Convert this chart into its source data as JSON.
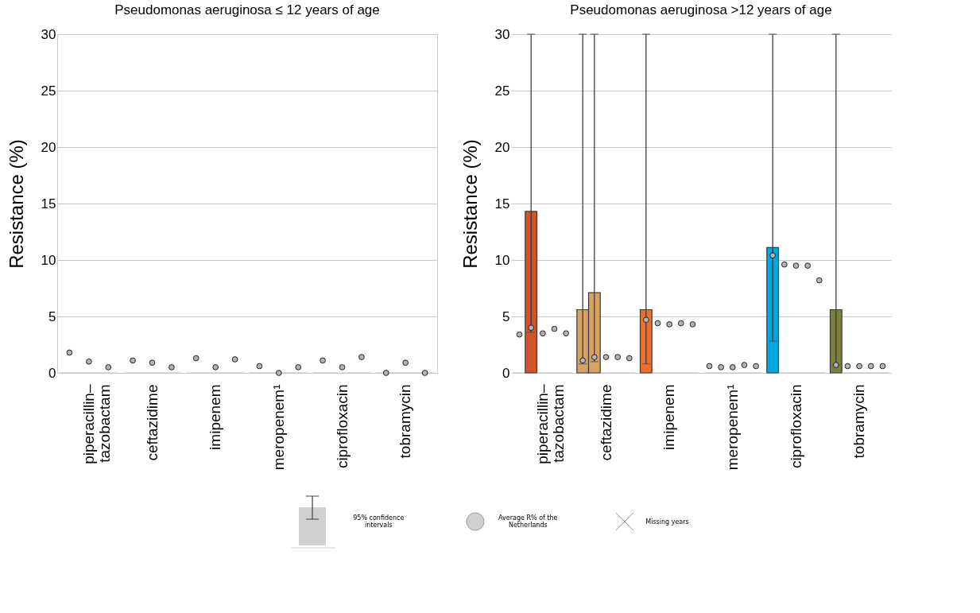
{
  "chart_data": [
    {
      "type": "bar",
      "title": "Pseudomonas aeruginosa ≤ 12 years of age",
      "ylabel": "Resistance (%)",
      "categories": [
        "piperacillin–tazobactam",
        "ceftazidime",
        "imipenem",
        "meropenem¹",
        "ciprofloxacin",
        "tobramycin"
      ],
      "ylim": [
        0,
        30
      ],
      "yticks": [
        0,
        5,
        10,
        15,
        20,
        25,
        30
      ],
      "grid": "y",
      "marker": "circle",
      "series": [
        {
          "colors": [
            "#bfbfbf",
            "#bfbfbf",
            "#bfbfbf",
            "#bfbfbf",
            "#bfbfbf",
            "#bfbfbf"
          ],
          "values": [
            0,
            0,
            0,
            0,
            0,
            0
          ]
        },
        {
          "colors": [
            "#bfbfbf",
            "#bfbfbf",
            "#bfbfbf",
            "#bfbfbf",
            "#bfbfbf",
            "#bfbfbf"
          ],
          "values": [
            0,
            0,
            0,
            0,
            0,
            0
          ]
        },
        {
          "colors": [
            "#bfbfbf",
            "#bfbfbf",
            "#bfbfbf",
            "#bfbfbf",
            "#bfbfbf",
            "#bfbfbf"
          ],
          "values": [
            0,
            0,
            0,
            0,
            0,
            0
          ]
        },
        {
          "type": "scatter",
          "color": "#b3b3b3",
          "x": [
            "piperacillin–tazobactam",
            "ceftazidime",
            "imipenem",
            "meropenem¹",
            "ciprofloxacin",
            "tobramycin"
          ],
          "values": [
            1.8,
            1.1,
            1.3,
            0.6,
            1.1,
            0.0
          ]
        },
        {
          "type": "scatter",
          "color": "#b3b3b3",
          "x": [
            "piperacillin–tazobactam",
            "ceftazidime",
            "imipenem",
            "meropenem¹",
            "ciprofloxacin",
            "tobramycin"
          ],
          "values": [
            1.0,
            0.9,
            0.5,
            0.0,
            0.5,
            0.9
          ]
        },
        {
          "type": "scatter",
          "color": "#b3b3b3",
          "x": [
            "piperacillin–tazobactam",
            "ceftazidime",
            "imipenem",
            "meropenem¹",
            "ciprofloxacin",
            "tobramycin"
          ],
          "values": [
            0.5,
            0.5,
            1.2,
            0.5,
            1.4,
            0.0
          ]
        }
      ]
    },
    {
      "type": "bar",
      "title": "Pseudomonas aeruginosa >12 years of age",
      "ylabel": "Resistance (%)",
      "categories": [
        "piperacillin–tazobactam",
        "ceftazidime",
        "imipenem",
        "meropenem¹",
        "ciprofloxacin",
        "tobramycin"
      ],
      "ylim": [
        0,
        30
      ],
      "yticks": [
        0,
        5,
        10,
        15,
        20,
        25,
        30
      ],
      "grid": "y",
      "marker": "circle",
      "annotations": [
        "95% confidence intervals",
        "Average R% of the Netherlands",
        "Missing years"
      ],
      "series": [
        {
          "colors": [
            "#bfbfbf",
            "#d6a265",
            "#ec6f2d",
            "#bfbfbf",
            "#00a7e1",
            "#7d7f3d"
          ],
          "values": [
            0,
            5.6,
            5.6,
            0,
            11.1,
            5.6
          ],
          "errors": [
            null,
            [
              0.8,
              30
            ],
            [
              0.8,
              30
            ],
            null,
            [
              2.8,
              30
            ],
            [
              0.7,
              30
            ]
          ]
        },
        {
          "colors": [
            "#d2532c",
            "#d6a265",
            "#bfbfbf",
            "#bfbfbf",
            "#bfbfbf",
            "#bfbfbf"
          ],
          "values": [
            14.3,
            7.1,
            0,
            0,
            0,
            0
          ],
          "errors": [
            [
              3.6,
              30
            ],
            [
              1.0,
              30
            ],
            null,
            null,
            null,
            null
          ]
        },
        {
          "colors": [
            "#bfbfbf",
            "#bfbfbf",
            "#bfbfbf",
            "#bfbfbf",
            "#bfbfbf",
            "#bfbfbf"
          ],
          "values": [
            0,
            0,
            0,
            0,
            0,
            0
          ]
        },
        {
          "colors": [
            "#bfbfbf",
            "#bfbfbf",
            "#bfbfbf",
            "#bfbfbf",
            "#bfbfbf",
            "#bfbfbf"
          ],
          "values": [
            0,
            0,
            0,
            0,
            0,
            0
          ]
        },
        {
          "colors": [
            "#bfbfbf",
            "#bfbfbf",
            "#bfbfbf",
            "#bfbfbf",
            "#bfbfbf",
            "#bfbfbf"
          ],
          "values": [
            0,
            0,
            0,
            0,
            0,
            0
          ]
        },
        {
          "type": "scatter",
          "color": "#b3b3b3",
          "x": [
            "piperacillin–tazobactam",
            "ceftazidime",
            "imipenem",
            "meropenem¹",
            "ciprofloxacin",
            "tobramycin"
          ],
          "values": [
            3.4,
            1.1,
            4.7,
            0.6,
            10.4,
            0.7
          ]
        },
        {
          "type": "scatter",
          "color": "#b3b3b3",
          "x": [
            "piperacillin–tazobactam",
            "ceftazidime",
            "imipenem",
            "meropenem¹",
            "ciprofloxacin",
            "tobramycin"
          ],
          "values": [
            4.0,
            1.4,
            4.4,
            0.5,
            9.6,
            0.6
          ]
        },
        {
          "type": "scatter",
          "color": "#b3b3b3",
          "x": [
            "piperacillin–tazobactam",
            "ceftazidime",
            "imipenem",
            "meropenem¹",
            "ciprofloxacin",
            "tobramycin"
          ],
          "values": [
            3.5,
            1.4,
            4.3,
            0.5,
            9.5,
            0.6
          ]
        },
        {
          "type": "scatter",
          "color": "#b3b3b3",
          "x": [
            "piperacillin–tazobactam",
            "ceftazidime",
            "imipenem",
            "meropenem¹",
            "ciprofloxacin",
            "tobramycin"
          ],
          "values": [
            3.9,
            1.4,
            4.4,
            0.7,
            9.5,
            0.6
          ]
        },
        {
          "type": "scatter",
          "color": "#b3b3b3",
          "x": [
            "piperacillin–tazobactam",
            "ceftazidime",
            "imipenem",
            "meropenem¹",
            "ciprofloxacin",
            "tobramycin"
          ],
          "values": [
            3.5,
            1.3,
            4.3,
            0.6,
            8.2,
            0.6
          ]
        }
      ]
    }
  ]
}
